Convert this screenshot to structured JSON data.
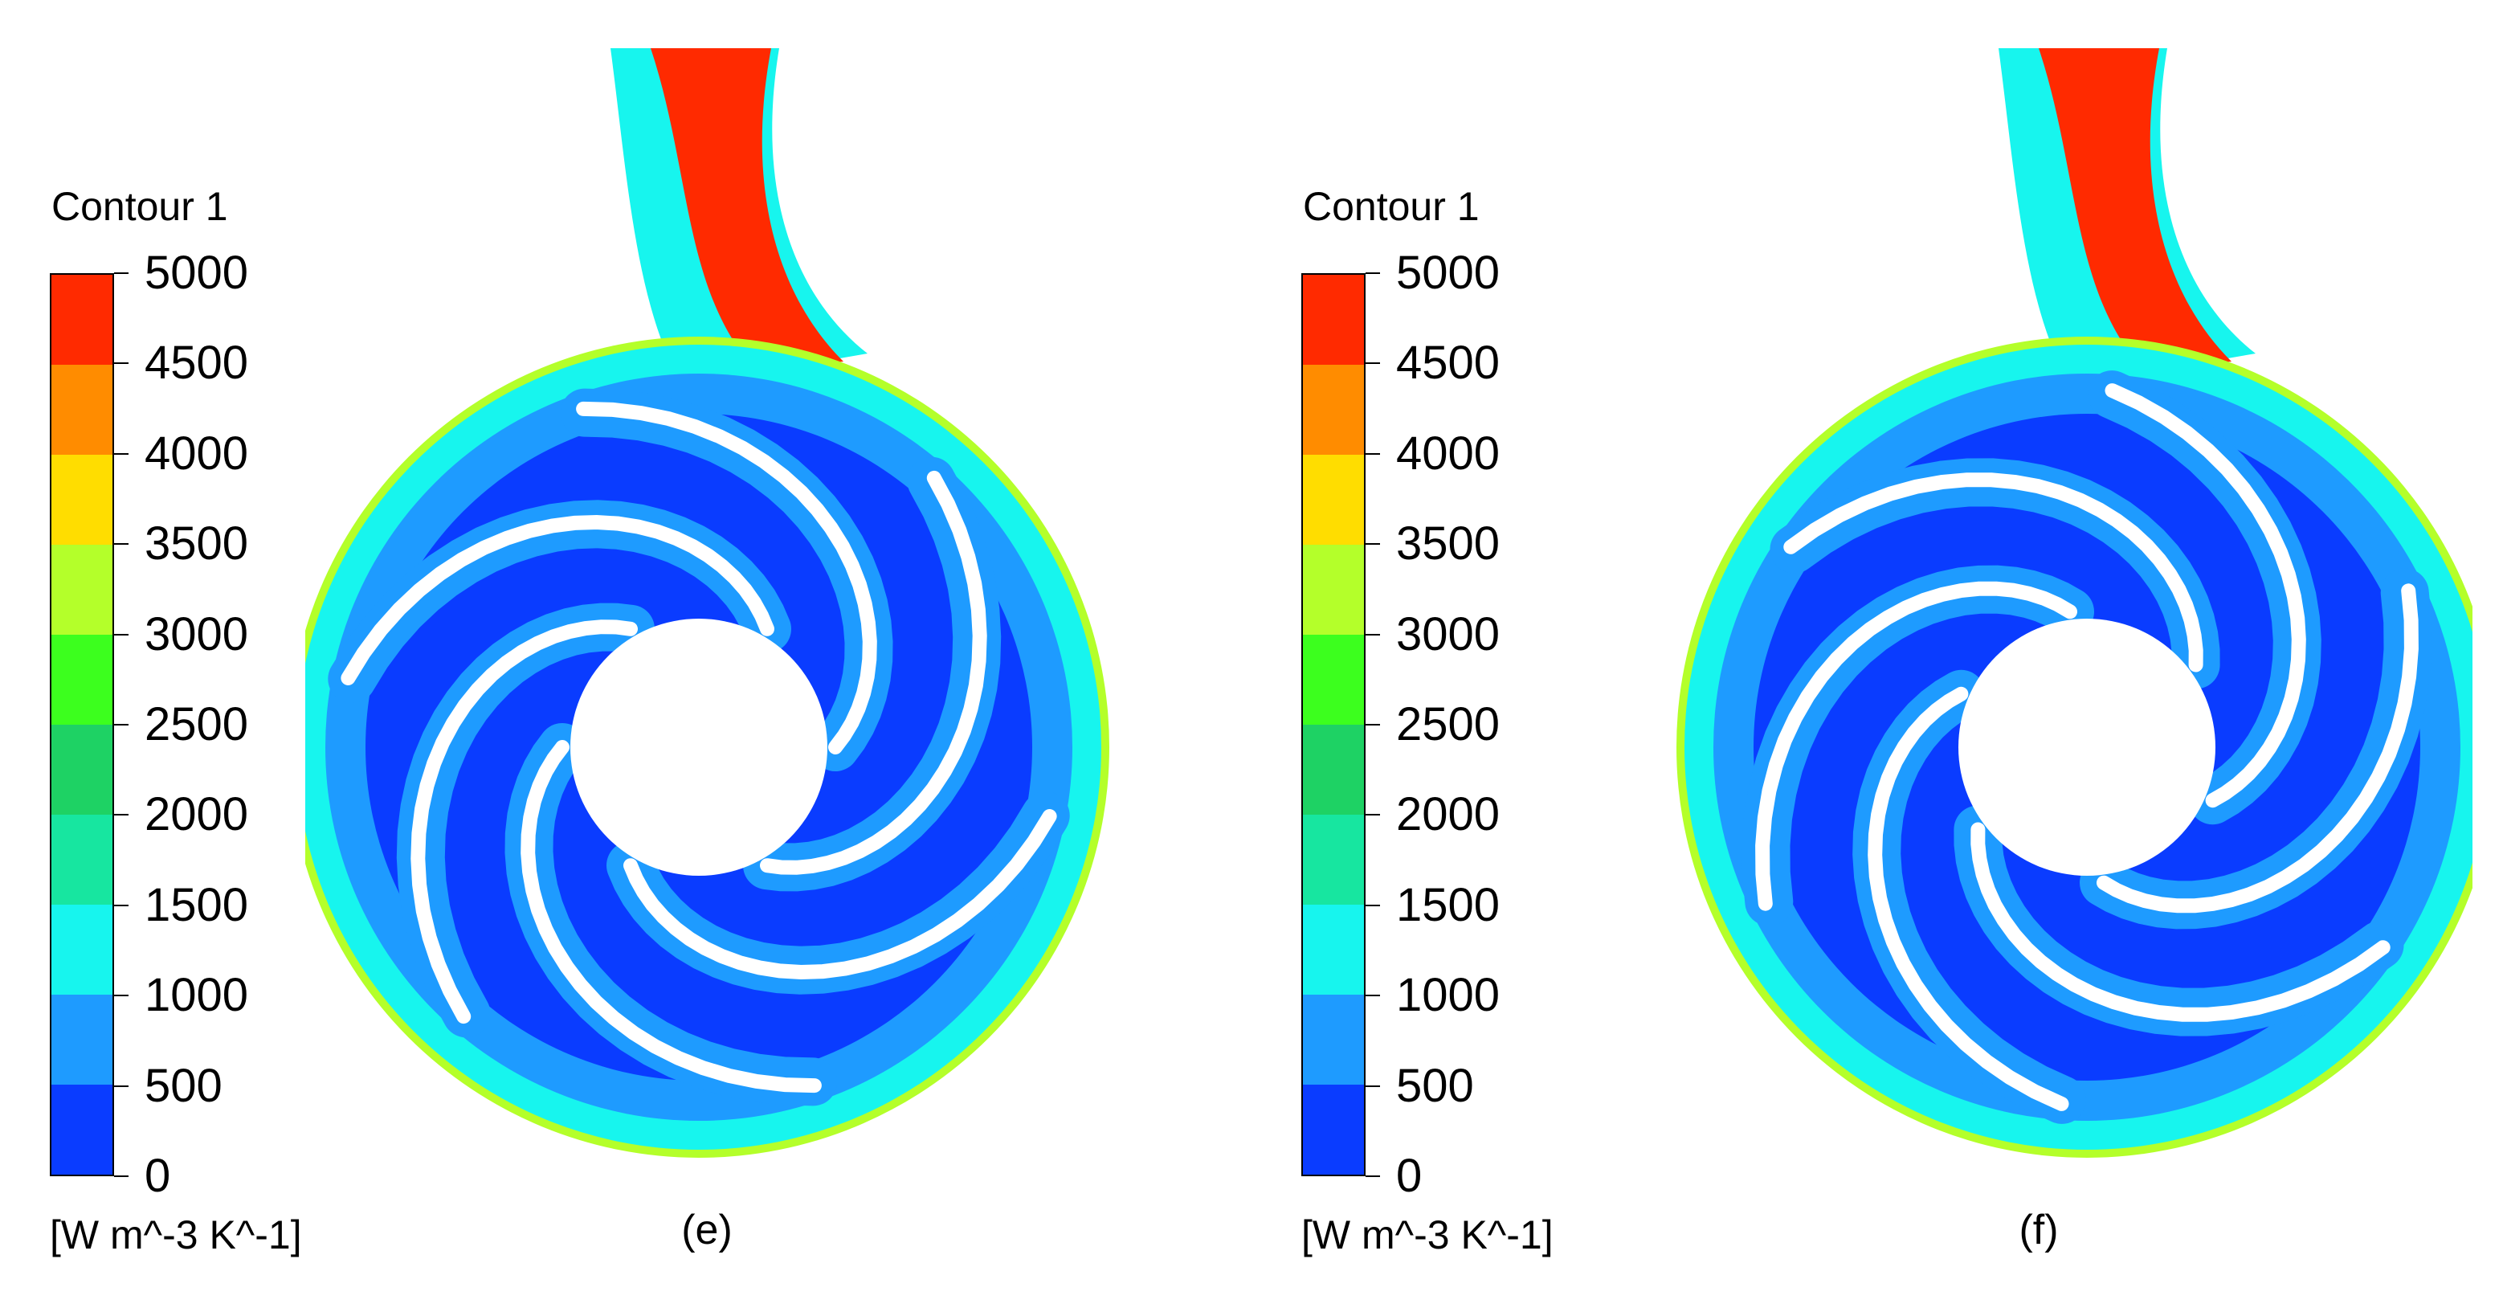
{
  "legend_scale": {
    "title": "Contour 1",
    "unit": "[W m^-3 K^-1]",
    "ticks": [
      "5000",
      "4500",
      "4000",
      "3500",
      "3000",
      "2500",
      "2000",
      "1500",
      "1000",
      "500",
      "0"
    ],
    "min": 0,
    "max": 5000,
    "band_colors_top_to_bottom": [
      "#ff2a00",
      "#ff8c00",
      "#ffdd00",
      "#b4ff2a",
      "#3cff1e",
      "#1ed264",
      "#17e6a0",
      "#17f5ee",
      "#1e9bff",
      "#0a3cff"
    ]
  },
  "panels": [
    {
      "caption": "(e)"
    },
    {
      "caption": "(f)"
    }
  ],
  "field_colors": {
    "low": "#0a3cff",
    "mid_low": "#1e9bff",
    "mid": "#17f5ee",
    "high": "#ff2a00",
    "edge": "#b4ff2a",
    "blade": "#ffffff"
  }
}
